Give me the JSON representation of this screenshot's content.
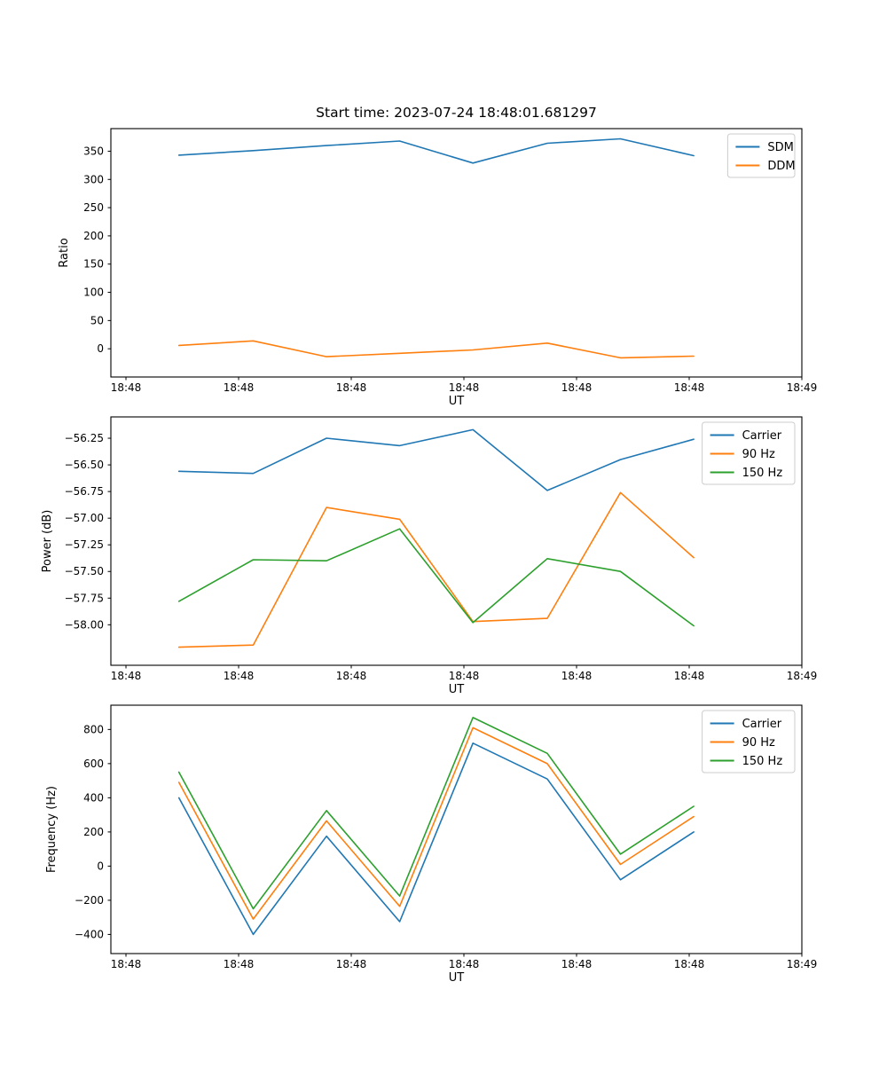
{
  "figure": {
    "title": "Start time: 2023-07-24 18:48:01.681297"
  },
  "colors": {
    "blue": "#1f77b4",
    "orange": "#ff7f0e",
    "green": "#2ca02c",
    "spine": "#000000",
    "legend_border": "#cccccc",
    "background": "#ffffff",
    "text": "#000000"
  },
  "chart_data": [
    {
      "type": "line",
      "title": "",
      "xlabel": "UT",
      "ylabel": "Ratio",
      "x_tick_labels": [
        "18:48",
        "18:48",
        "18:48",
        "18:48",
        "18:48",
        "18:48",
        "18:49"
      ],
      "x_ticks_seconds": [
        0,
        10,
        20,
        30,
        40,
        50,
        60
      ],
      "xlim_seconds": [
        -1.34,
        60
      ],
      "x_seconds": [
        4.7,
        11.3,
        17.8,
        24.3,
        30.8,
        37.4,
        43.9,
        50.4
      ],
      "ylim": [
        -50,
        390
      ],
      "y_ticks": [
        0,
        50,
        100,
        150,
        200,
        250,
        300,
        350
      ],
      "y_tick_labels": [
        "0",
        "50",
        "100",
        "150",
        "200",
        "250",
        "300",
        "350"
      ],
      "grid": false,
      "legend_loc": "upper right",
      "legend": [
        "SDM",
        "DDM"
      ],
      "series": [
        {
          "name": "SDM",
          "color": "#1f77b4",
          "values": [
            343,
            351,
            360,
            368,
            329,
            364,
            372,
            342
          ]
        },
        {
          "name": "DDM",
          "color": "#ff7f0e",
          "values": [
            6,
            14,
            -14,
            -8,
            -2,
            10,
            -16,
            -13
          ]
        }
      ]
    },
    {
      "type": "line",
      "title": "",
      "xlabel": "UT",
      "ylabel": "Power (dB)",
      "x_tick_labels": [
        "18:48",
        "18:48",
        "18:48",
        "18:48",
        "18:48",
        "18:48",
        "18:49"
      ],
      "x_ticks_seconds": [
        0,
        10,
        20,
        30,
        40,
        50,
        60
      ],
      "xlim_seconds": [
        -1.34,
        60
      ],
      "x_seconds": [
        4.7,
        11.3,
        17.8,
        24.3,
        30.8,
        37.4,
        43.9,
        50.4
      ],
      "ylim": [
        -58.38,
        -56.05
      ],
      "y_ticks": [
        -58.0,
        -57.75,
        -57.5,
        -57.25,
        -57.0,
        -56.75,
        -56.5,
        -56.25
      ],
      "y_tick_labels": [
        "−58.00",
        "−57.75",
        "−57.50",
        "−57.25",
        "−57.00",
        "−56.75",
        "−56.50",
        "−56.25"
      ],
      "grid": false,
      "legend_loc": "upper right",
      "legend": [
        "Carrier",
        "90 Hz",
        "150 Hz"
      ],
      "series": [
        {
          "name": "Carrier",
          "color": "#1f77b4",
          "values": [
            -56.56,
            -56.58,
            -56.25,
            -56.32,
            -56.17,
            -56.74,
            -56.45,
            -56.26
          ]
        },
        {
          "name": "90 Hz",
          "color": "#ff7f0e",
          "values": [
            -58.21,
            -58.19,
            -56.9,
            -57.01,
            -57.97,
            -57.94,
            -56.76,
            -57.37
          ]
        },
        {
          "name": "150 Hz",
          "color": "#2ca02c",
          "values": [
            -57.78,
            -57.39,
            -57.4,
            -57.1,
            -57.98,
            -57.38,
            -57.5,
            -58.01
          ]
        }
      ]
    },
    {
      "type": "line",
      "title": "",
      "xlabel": "UT",
      "ylabel": "Frequency (Hz)",
      "x_tick_labels": [
        "18:48",
        "18:48",
        "18:48",
        "18:48",
        "18:48",
        "18:48",
        "18:49"
      ],
      "x_ticks_seconds": [
        0,
        10,
        20,
        30,
        40,
        50,
        60
      ],
      "xlim_seconds": [
        -1.34,
        60
      ],
      "x_seconds": [
        4.7,
        11.3,
        17.8,
        24.3,
        30.8,
        37.4,
        43.9,
        50.4
      ],
      "ylim": [
        -512,
        942
      ],
      "y_ticks": [
        -400,
        -200,
        0,
        200,
        400,
        600,
        800
      ],
      "y_tick_labels": [
        "−400",
        "−200",
        "0",
        "200",
        "400",
        "600",
        "800"
      ],
      "grid": false,
      "legend_loc": "upper right",
      "legend": [
        "Carrier",
        "90 Hz",
        "150 Hz"
      ],
      "series": [
        {
          "name": "Carrier",
          "color": "#1f77b4",
          "values": [
            400,
            -400,
            175,
            -325,
            720,
            510,
            -80,
            200
          ]
        },
        {
          "name": "90 Hz",
          "color": "#ff7f0e",
          "values": [
            490,
            -310,
            265,
            -235,
            810,
            600,
            10,
            290
          ]
        },
        {
          "name": "150 Hz",
          "color": "#2ca02c",
          "values": [
            550,
            -250,
            325,
            -175,
            870,
            660,
            70,
            350
          ]
        }
      ]
    }
  ]
}
